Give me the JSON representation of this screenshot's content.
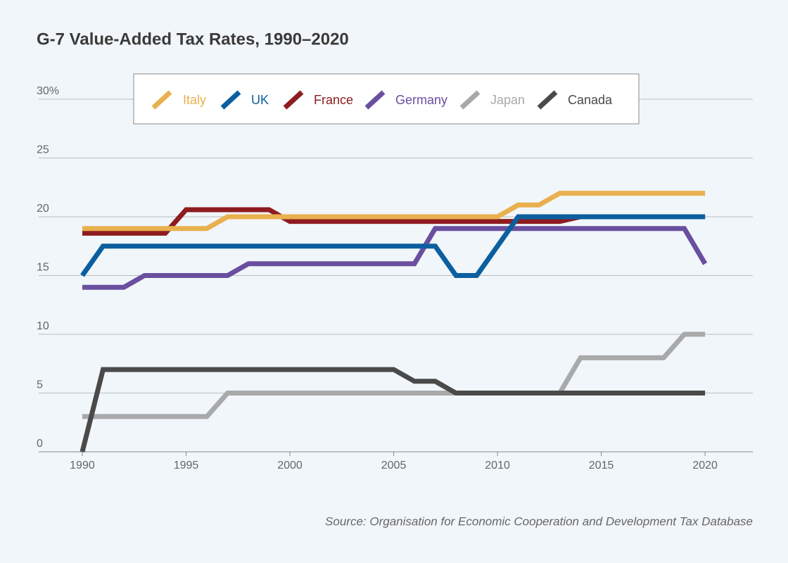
{
  "chart_data": {
    "type": "line",
    "title": "G-7 Value-Added Tax Rates, 1990–2020",
    "source": "Source: Organisation for Economic Cooperation and Development Tax Database",
    "x": [
      1990,
      1991,
      1992,
      1993,
      1994,
      1995,
      1996,
      1997,
      1998,
      1999,
      2000,
      2001,
      2002,
      2003,
      2004,
      2005,
      2006,
      2007,
      2008,
      2009,
      2010,
      2011,
      2012,
      2013,
      2014,
      2015,
      2016,
      2017,
      2018,
      2019,
      2020
    ],
    "series": [
      {
        "name": "Italy",
        "color": "#e9b04e",
        "values": [
          19,
          19,
          19,
          19,
          19,
          19,
          19,
          20,
          20,
          20,
          20,
          20,
          20,
          20,
          20,
          20,
          20,
          20,
          20,
          20,
          20,
          21,
          21,
          22,
          22,
          22,
          22,
          22,
          22,
          22,
          22
        ]
      },
      {
        "name": "UK",
        "color": "#0b5f9f",
        "values": [
          15,
          17.5,
          17.5,
          17.5,
          17.5,
          17.5,
          17.5,
          17.5,
          17.5,
          17.5,
          17.5,
          17.5,
          17.5,
          17.5,
          17.5,
          17.5,
          17.5,
          17.5,
          15,
          15,
          17.5,
          20,
          20,
          20,
          20,
          20,
          20,
          20,
          20,
          20,
          20
        ]
      },
      {
        "name": "France",
        "color": "#8e1c20",
        "values": [
          18.6,
          18.6,
          18.6,
          18.6,
          18.6,
          20.6,
          20.6,
          20.6,
          20.6,
          20.6,
          19.6,
          19.6,
          19.6,
          19.6,
          19.6,
          19.6,
          19.6,
          19.6,
          19.6,
          19.6,
          19.6,
          19.6,
          19.6,
          19.6,
          20,
          20,
          20,
          20,
          20,
          20,
          20
        ]
      },
      {
        "name": "Germany",
        "color": "#6a4f9f",
        "values": [
          14,
          14,
          14,
          15,
          15,
          15,
          15,
          15,
          16,
          16,
          16,
          16,
          16,
          16,
          16,
          16,
          16,
          19,
          19,
          19,
          19,
          19,
          19,
          19,
          19,
          19,
          19,
          19,
          19,
          19,
          16
        ]
      },
      {
        "name": "Japan",
        "color": "#a7a9ab",
        "values": [
          3,
          3,
          3,
          3,
          3,
          3,
          3,
          5,
          5,
          5,
          5,
          5,
          5,
          5,
          5,
          5,
          5,
          5,
          5,
          5,
          5,
          5,
          5,
          5,
          8,
          8,
          8,
          8,
          8,
          10,
          10
        ]
      },
      {
        "name": "Canada",
        "color": "#4a4a4a",
        "values": [
          0,
          7,
          7,
          7,
          7,
          7,
          7,
          7,
          7,
          7,
          7,
          7,
          7,
          7,
          7,
          7,
          6,
          6,
          5,
          5,
          5,
          5,
          5,
          5,
          5,
          5,
          5,
          5,
          5,
          5,
          5
        ]
      }
    ],
    "xlim": [
      1987.9,
      2022.3
    ],
    "xticks": [
      1990,
      1995,
      2000,
      2005,
      2010,
      2015,
      2020
    ],
    "ylim": [
      0,
      30
    ],
    "yticks": [
      0,
      5,
      10,
      15,
      20,
      {
        "value": 30,
        "label": "30%"
      },
      25
    ],
    "grid": true,
    "legend": "top"
  }
}
